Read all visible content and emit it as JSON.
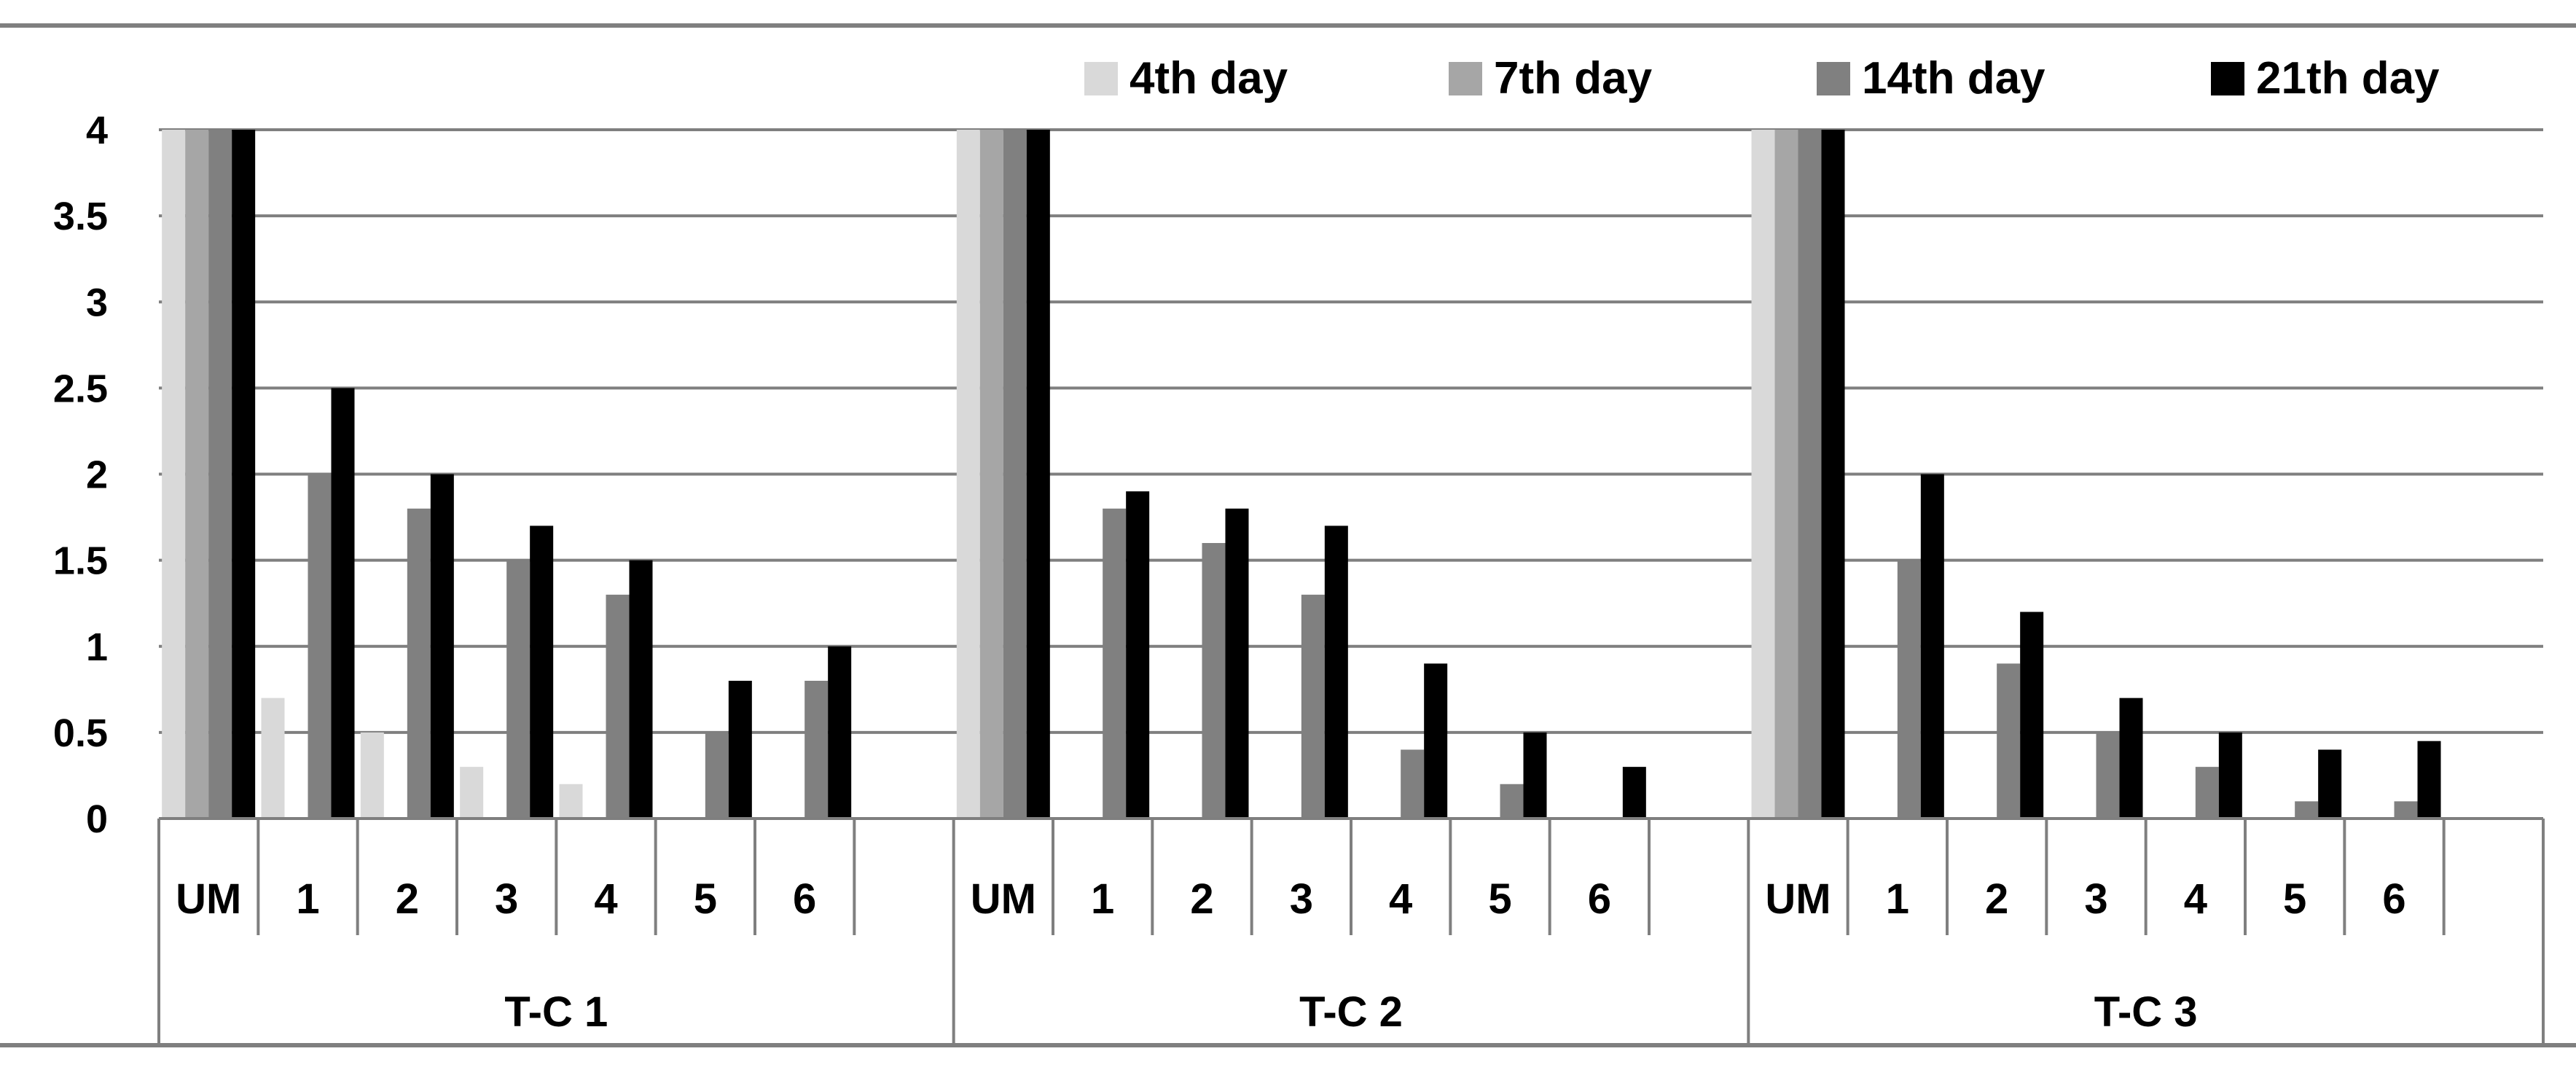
{
  "chart_data": {
    "type": "bar",
    "title": "",
    "xlabel": "",
    "ylabel": "",
    "ylim": [
      0,
      4
    ],
    "yticks": [
      "0",
      "0.5",
      "1",
      "1.5",
      "2",
      "2.5",
      "3",
      "3.5",
      "4"
    ],
    "grid": true,
    "legend_position": "top-right",
    "groups": [
      {
        "name": "T-C 1",
        "categories": [
          "UM",
          "1",
          "2",
          "3",
          "4",
          "5",
          "6"
        ]
      },
      {
        "name": "T-C 2",
        "categories": [
          "UM",
          "1",
          "2",
          "3",
          "4",
          "5",
          "6"
        ]
      },
      {
        "name": "T-C 3",
        "categories": [
          "UM",
          "1",
          "2",
          "3",
          "4",
          "5",
          "6"
        ]
      }
    ],
    "series": [
      {
        "name": "4th day",
        "color": "#d9d9d9",
        "values": [
          [
            4,
            0.7,
            0.5,
            0.3,
            0.2,
            0,
            0
          ],
          [
            4,
            0,
            0,
            0,
            0,
            0,
            0
          ],
          [
            4,
            0,
            0,
            0,
            0,
            0,
            0
          ]
        ]
      },
      {
        "name": "7th day",
        "color": "#a6a6a6",
        "values": [
          [
            4,
            0,
            0,
            0,
            0,
            0,
            0
          ],
          [
            4,
            0,
            0,
            0,
            0,
            0,
            0
          ],
          [
            4,
            0,
            0,
            0,
            0,
            0,
            0
          ]
        ]
      },
      {
        "name": "14th day",
        "color": "#808080",
        "values": [
          [
            4,
            2,
            1.8,
            1.5,
            1.3,
            0.5,
            0.8
          ],
          [
            4,
            1.8,
            1.6,
            1.3,
            0.4,
            0.2,
            0
          ],
          [
            4,
            1.5,
            0.9,
            0.5,
            0.3,
            0.1,
            0.1
          ]
        ]
      },
      {
        "name": "21th day",
        "color": "#000000",
        "values": [
          [
            4,
            2.5,
            2,
            1.7,
            1.5,
            0.8,
            1
          ],
          [
            4,
            1.9,
            1.8,
            1.7,
            0.9,
            0.5,
            0.3
          ],
          [
            4,
            2,
            1.2,
            0.7,
            0.5,
            0.4,
            0.45
          ]
        ]
      }
    ]
  }
}
